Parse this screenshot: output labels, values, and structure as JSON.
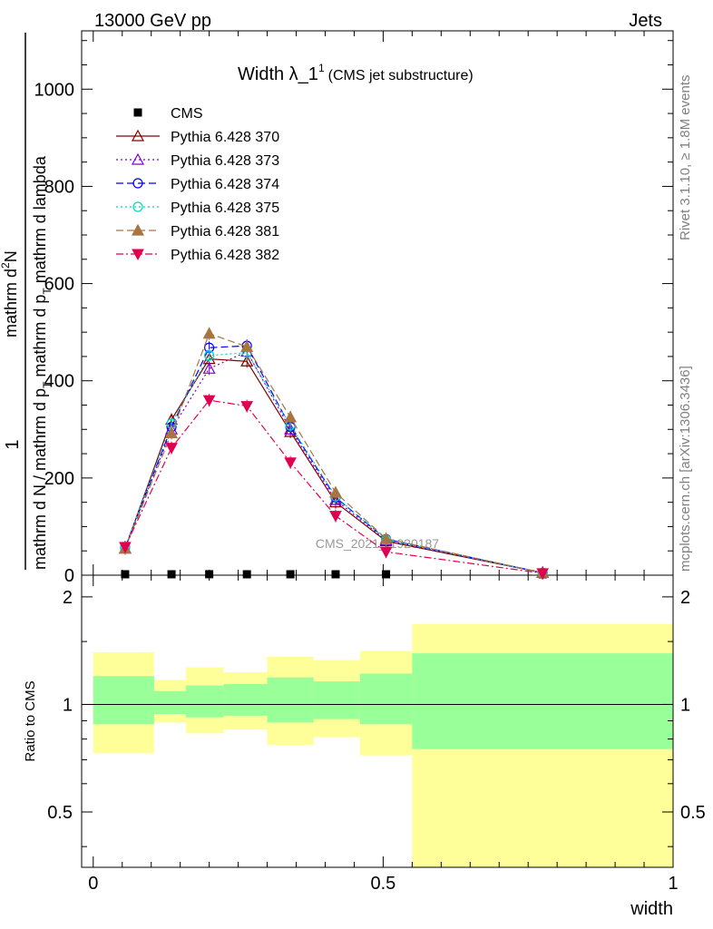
{
  "header": {
    "left": "13000 GeV pp",
    "right": "Jets"
  },
  "side_labels": {
    "rivet": "Rivet 3.1.10, ≥ 1.8M events",
    "mcplots": "mcplots.cern.ch [arXiv:1306.3436]"
  },
  "chart_data": {
    "type": "line",
    "title": "Width λ_1",
    "title_sup": "1",
    "subtitle": "(CMS jet substructure)",
    "watermark": "CMS_2021_I1920187",
    "ylabel_parts": [
      "1",
      "mathrm d N / mathrm d p",
      "T",
      " mathrm d p",
      "T",
      " mathrm d lambda",
      "mathrm d",
      "2",
      "N"
    ],
    "xlabel": "width",
    "ratio_ylabel": "Ratio to CMS",
    "xlim": [
      -0.02,
      1.0
    ],
    "ylim": [
      0,
      1120
    ],
    "ratio_ylim": [
      0.35,
      2.3
    ],
    "x_ticks": [
      "0",
      "0.5",
      "1"
    ],
    "x_tick_values": [
      0,
      0.5,
      1
    ],
    "y_ticks": [
      "0",
      "200",
      "400",
      "600",
      "800",
      "1000"
    ],
    "y_tick_values": [
      0,
      200,
      400,
      600,
      800,
      1000
    ],
    "ratio_ticks": [
      "0.5",
      "1",
      "2"
    ],
    "ratio_tick_values": [
      0.5,
      1,
      2
    ],
    "x": [
      0.055,
      0.135,
      0.2,
      0.265,
      0.34,
      0.418,
      0.505,
      0.775
    ],
    "bin_edges": [
      0,
      0.105,
      0.16,
      0.225,
      0.3,
      0.38,
      0.46,
      0.55,
      1.0
    ],
    "series": [
      {
        "name": "CMS",
        "values": [
          1,
          1,
          2,
          1,
          1,
          0.5,
          0.5,
          0.2
        ],
        "marker": "square",
        "color": "#000000",
        "dash": ""
      },
      {
        "name": "Pythia 6.428 370",
        "values": [
          55,
          320,
          445,
          440,
          295,
          150,
          70,
          5
        ],
        "marker": "triangle-open",
        "color": "#7f0000",
        "dash": ""
      },
      {
        "name": "Pythia 6.428 373",
        "values": [
          55,
          300,
          425,
          460,
          300,
          155,
          72,
          5
        ],
        "marker": "triangle-open",
        "color": "#7f00d0",
        "dash": "2,3"
      },
      {
        "name": "Pythia 6.428 374",
        "values": [
          57,
          305,
          468,
          472,
          305,
          160,
          74,
          5
        ],
        "marker": "circle-open",
        "color": "#0000ff",
        "dash": "8,4"
      },
      {
        "name": "Pythia 6.428 375",
        "values": [
          56,
          312,
          452,
          458,
          308,
          162,
          73,
          5
        ],
        "marker": "circle-open",
        "color": "#00d8c0",
        "dash": "2,3"
      },
      {
        "name": "Pythia 6.428 381",
        "values": [
          55,
          292,
          497,
          470,
          325,
          170,
          75,
          5
        ],
        "marker": "triangle-filled",
        "color": "#a87440",
        "dash": "8,4"
      },
      {
        "name": "Pythia 6.428 382",
        "values": [
          58,
          262,
          360,
          348,
          232,
          122,
          48,
          4
        ],
        "marker": "triangle-down-filled",
        "color": "#e00050",
        "dash": "8,3,2,3"
      }
    ],
    "ratio_bands": {
      "yellow": [
        [
          0.73,
          1.4
        ],
        [
          0.89,
          1.17
        ],
        [
          0.83,
          1.27
        ],
        [
          0.85,
          1.23
        ],
        [
          0.77,
          1.36
        ],
        [
          0.81,
          1.33
        ],
        [
          0.72,
          1.41
        ],
        [
          0.3,
          1.68
        ]
      ],
      "green": [
        [
          0.88,
          1.2
        ],
        [
          0.94,
          1.09
        ],
        [
          0.92,
          1.13
        ],
        [
          0.93,
          1.14
        ],
        [
          0.89,
          1.19
        ],
        [
          0.91,
          1.16
        ],
        [
          0.88,
          1.22
        ],
        [
          0.75,
          1.39
        ]
      ],
      "yellow_color": "#ffff99",
      "green_color": "#99ff99"
    }
  }
}
